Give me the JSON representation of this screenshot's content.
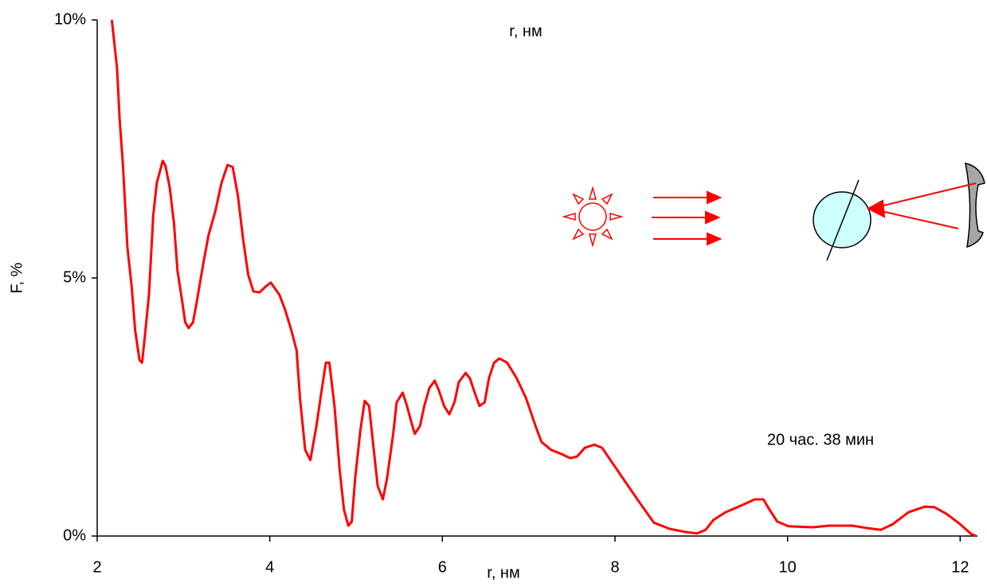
{
  "chart_data": {
    "type": "line",
    "title_top": "r, нм",
    "x_label": "r, нм",
    "y_label": "F, %",
    "annotation": "20 час. 38 мин",
    "xlim": [
      2,
      12.2
    ],
    "xticks": [
      2,
      4,
      6,
      8,
      10,
      12
    ],
    "ylim": [
      0,
      10
    ],
    "yticks": [
      {
        "value": 0,
        "label": "0%"
      },
      {
        "value": 5,
        "label": "5%"
      },
      {
        "value": 10,
        "label": "10%"
      }
    ],
    "x": [
      2.17,
      2.23,
      2.26,
      2.3,
      2.35,
      2.4,
      2.44,
      2.49,
      2.52,
      2.55,
      2.6,
      2.65,
      2.69,
      2.76,
      2.79,
      2.84,
      2.89,
      2.93,
      2.98,
      3.02,
      3.06,
      3.11,
      3.16,
      3.23,
      3.29,
      3.37,
      3.44,
      3.51,
      3.57,
      3.63,
      3.69,
      3.75,
      3.81,
      3.88,
      3.95,
      4.01,
      4.11,
      4.18,
      4.25,
      4.31,
      4.35,
      4.41,
      4.47,
      4.54,
      4.6,
      4.65,
      4.69,
      4.75,
      4.81,
      4.86,
      4.91,
      4.95,
      4.99,
      5.05,
      5.1,
      5.15,
      5.2,
      5.25,
      5.31,
      5.36,
      5.43,
      5.47,
      5.54,
      5.59,
      5.64,
      5.68,
      5.74,
      5.79,
      5.85,
      5.91,
      5.96,
      6.02,
      6.08,
      6.14,
      6.19,
      6.27,
      6.32,
      6.38,
      6.43,
      6.49,
      6.54,
      6.6,
      6.66,
      6.75,
      6.86,
      6.97,
      7.08,
      7.15,
      7.26,
      7.38,
      7.48,
      7.56,
      7.65,
      7.76,
      7.85,
      7.96,
      8.12,
      8.31,
      8.45,
      8.63,
      8.81,
      8.95,
      9.05,
      9.14,
      9.28,
      9.46,
      9.62,
      9.72,
      9.78,
      9.88,
      10.01,
      10.29,
      10.48,
      10.75,
      10.94,
      11.08,
      11.22,
      11.4,
      11.59,
      11.7,
      11.84,
      12.0,
      12.12,
      12.18
    ],
    "series": [
      {
        "color": "#ff0000",
        "values": [
          10.0,
          9.07,
          8.07,
          7.15,
          5.6,
          4.83,
          3.98,
          3.41,
          3.36,
          3.83,
          4.68,
          6.22,
          6.84,
          7.27,
          7.18,
          6.76,
          6.06,
          5.14,
          4.6,
          4.14,
          4.03,
          4.14,
          4.6,
          5.29,
          5.83,
          6.3,
          6.84,
          7.19,
          7.15,
          6.6,
          5.76,
          5.06,
          4.74,
          4.72,
          4.83,
          4.91,
          4.68,
          4.37,
          3.98,
          3.6,
          2.67,
          1.67,
          1.47,
          2.13,
          2.82,
          3.36,
          3.36,
          2.52,
          1.28,
          0.51,
          0.2,
          0.28,
          1.13,
          2.05,
          2.62,
          2.52,
          1.74,
          0.97,
          0.71,
          1.13,
          1.98,
          2.59,
          2.78,
          2.52,
          2.21,
          1.98,
          2.13,
          2.52,
          2.87,
          3.01,
          2.82,
          2.52,
          2.36,
          2.59,
          2.98,
          3.16,
          3.05,
          2.75,
          2.52,
          2.59,
          3.06,
          3.36,
          3.44,
          3.36,
          3.06,
          2.67,
          2.13,
          1.82,
          1.67,
          1.59,
          1.51,
          1.54,
          1.71,
          1.77,
          1.71,
          1.44,
          1.05,
          0.59,
          0.26,
          0.14,
          0.08,
          0.05,
          0.12,
          0.31,
          0.46,
          0.59,
          0.71,
          0.71,
          0.54,
          0.28,
          0.19,
          0.17,
          0.2,
          0.2,
          0.15,
          0.12,
          0.23,
          0.46,
          0.57,
          0.56,
          0.43,
          0.23,
          0.05,
          0
        ]
      }
    ]
  }
}
